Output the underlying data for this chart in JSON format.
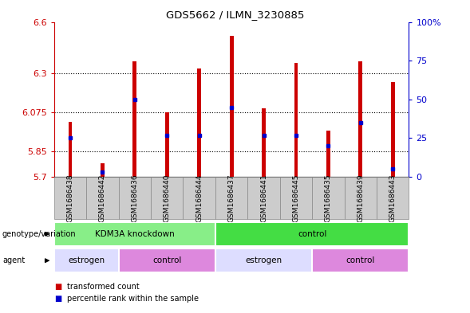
{
  "title": "GDS5662 / ILMN_3230885",
  "samples": [
    "GSM1686438",
    "GSM1686442",
    "GSM1686436",
    "GSM1686440",
    "GSM1686444",
    "GSM1686437",
    "GSM1686441",
    "GSM1686445",
    "GSM1686435",
    "GSM1686439",
    "GSM1686443"
  ],
  "red_values": [
    6.02,
    5.78,
    6.37,
    6.075,
    6.33,
    6.52,
    6.1,
    6.36,
    5.97,
    6.37,
    6.25
  ],
  "blue_percentiles": [
    25,
    3,
    50,
    27,
    27,
    45,
    27,
    27,
    20,
    35,
    5
  ],
  "ymin": 5.7,
  "ymax": 6.6,
  "yticks": [
    5.7,
    5.85,
    6.075,
    6.3,
    6.6
  ],
  "ytick_labels": [
    "5.7",
    "5.85",
    "6.075",
    "6.3",
    "6.6"
  ],
  "right_yticks": [
    0,
    25,
    50,
    75,
    100
  ],
  "right_ytick_labels": [
    "0",
    "25",
    "50",
    "75",
    "100%"
  ],
  "bar_color": "#cc0000",
  "blue_color": "#0000cc",
  "bar_width": 0.12,
  "genotype_groups": [
    {
      "label": "KDM3A knockdown",
      "start": 0,
      "end": 5,
      "color": "#88ee88"
    },
    {
      "label": "control",
      "start": 5,
      "end": 11,
      "color": "#44dd44"
    }
  ],
  "agent_groups": [
    {
      "label": "estrogen",
      "start": 0,
      "end": 2,
      "color": "#ddddff"
    },
    {
      "label": "control",
      "start": 2,
      "end": 5,
      "color": "#dd88dd"
    },
    {
      "label": "estrogen",
      "start": 5,
      "end": 8,
      "color": "#ddddff"
    },
    {
      "label": "control",
      "start": 8,
      "end": 11,
      "color": "#dd88dd"
    }
  ],
  "legend_items": [
    {
      "label": "transformed count",
      "color": "#cc0000"
    },
    {
      "label": "percentile rank within the sample",
      "color": "#0000cc"
    }
  ],
  "tick_color_left": "#cc0000",
  "tick_color_right": "#0000cc",
  "sample_box_color": "#cccccc",
  "sample_box_edge": "#888888"
}
